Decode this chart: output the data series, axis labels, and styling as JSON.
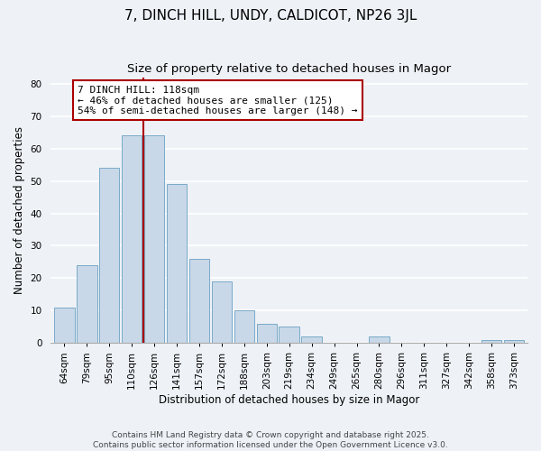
{
  "title": "7, DINCH HILL, UNDY, CALDICOT, NP26 3JL",
  "subtitle": "Size of property relative to detached houses in Magor",
  "xlabel": "Distribution of detached houses by size in Magor",
  "ylabel": "Number of detached properties",
  "bar_labels": [
    "64sqm",
    "79sqm",
    "95sqm",
    "110sqm",
    "126sqm",
    "141sqm",
    "157sqm",
    "172sqm",
    "188sqm",
    "203sqm",
    "219sqm",
    "234sqm",
    "249sqm",
    "265sqm",
    "280sqm",
    "296sqm",
    "311sqm",
    "327sqm",
    "342sqm",
    "358sqm",
    "373sqm"
  ],
  "bar_values": [
    11,
    24,
    54,
    64,
    64,
    49,
    26,
    19,
    10,
    6,
    5,
    2,
    0,
    0,
    2,
    0,
    0,
    0,
    0,
    1,
    1
  ],
  "bar_color": "#c8d8e8",
  "bar_edge_color": "#7aaac8",
  "vline_color": "#aa0000",
  "vline_x_idx": 3.5,
  "annotation_text": "7 DINCH HILL: 118sqm\n← 46% of detached houses are smaller (125)\n54% of semi-detached houses are larger (148) →",
  "annotation_box_color": "#ffffff",
  "annotation_box_edge": "#aa0000",
  "ylim": [
    0,
    82
  ],
  "yticks": [
    0,
    10,
    20,
    30,
    40,
    50,
    60,
    70,
    80
  ],
  "footer": "Contains HM Land Registry data © Crown copyright and database right 2025.\nContains public sector information licensed under the Open Government Licence v3.0.",
  "bg_color": "#eef2f7",
  "grid_color": "#ffffff",
  "title_fontsize": 11,
  "subtitle_fontsize": 9.5,
  "label_fontsize": 8.5,
  "tick_fontsize": 7.5,
  "footer_fontsize": 6.5
}
